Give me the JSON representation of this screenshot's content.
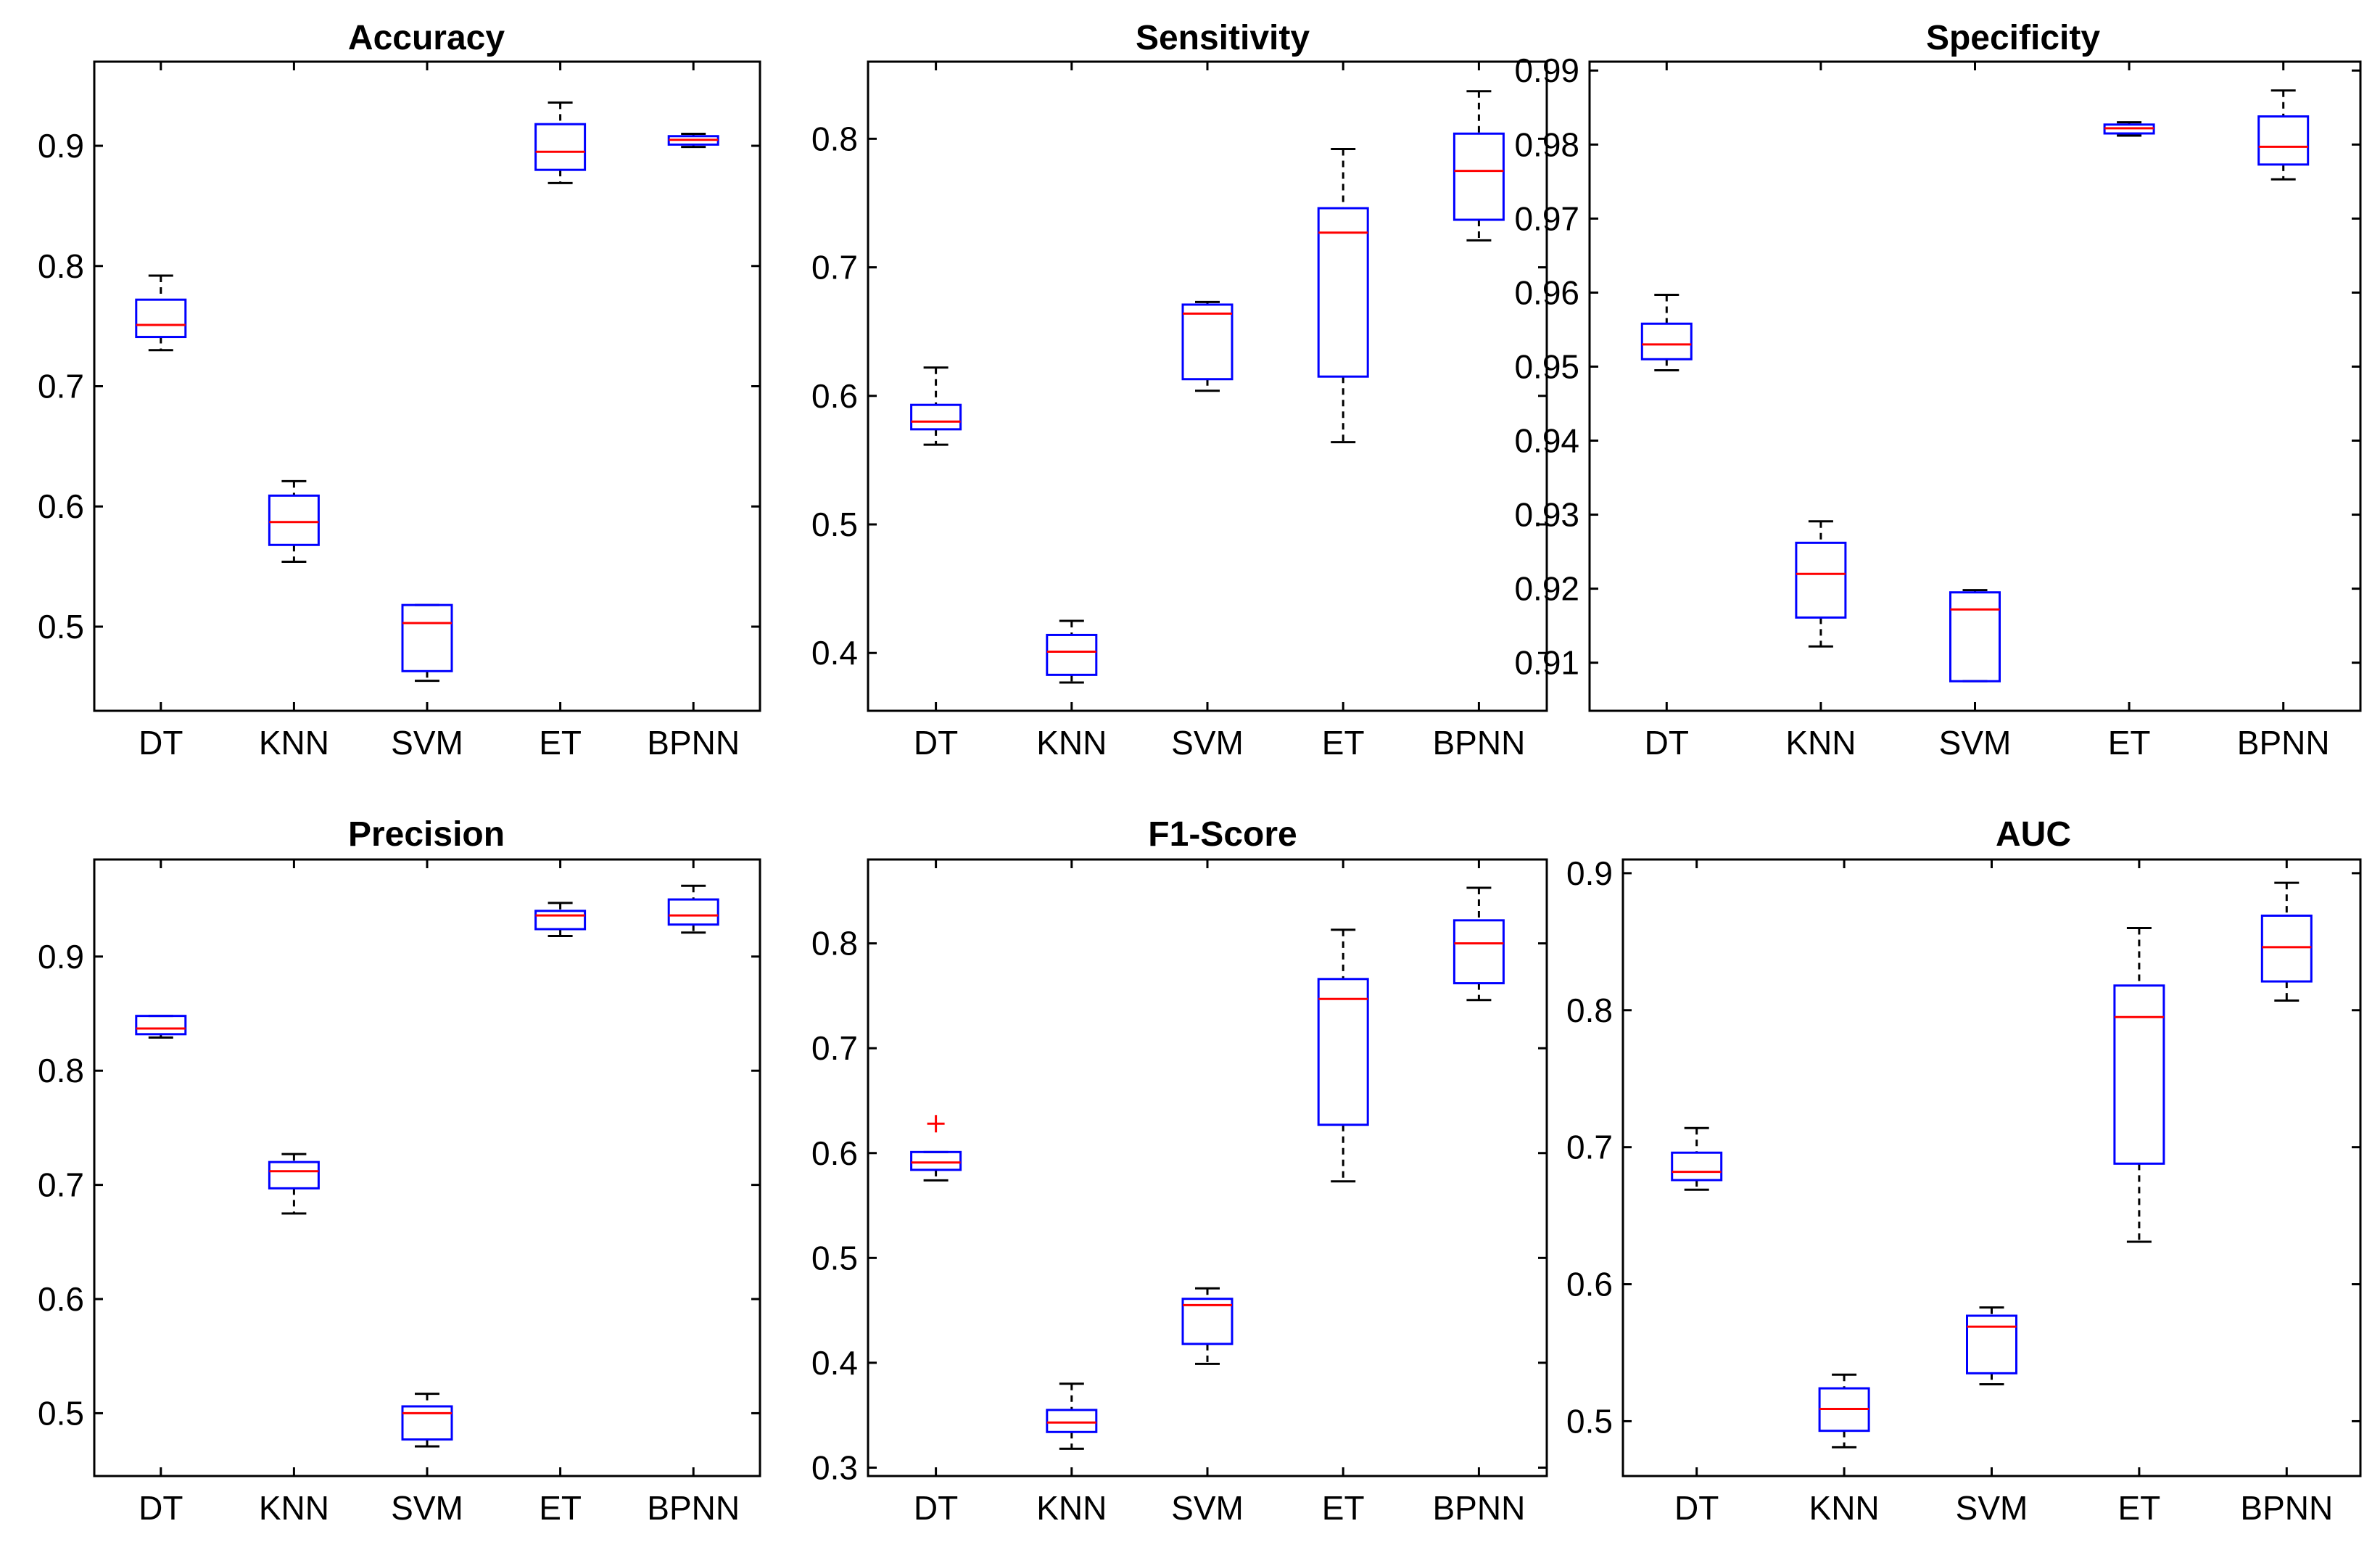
{
  "chart_data": [
    {
      "type": "box",
      "title": "Accuracy",
      "categories": [
        "DT",
        "KNN",
        "SVM",
        "ET",
        "BPNN"
      ],
      "yticks": [
        "0.5",
        "0.6",
        "0.7",
        "0.8",
        "0.9"
      ],
      "ylim": [
        0.43,
        0.97
      ],
      "boxes": [
        {
          "min": 0.73,
          "q1": 0.741,
          "median": 0.751,
          "q3": 0.772,
          "max": 0.792
        },
        {
          "min": 0.554,
          "q1": 0.568,
          "median": 0.587,
          "q3": 0.609,
          "max": 0.621
        },
        {
          "min": 0.455,
          "q1": 0.463,
          "median": 0.503,
          "q3": 0.518,
          "max": 0.518
        },
        {
          "min": 0.869,
          "q1": 0.88,
          "median": 0.895,
          "q3": 0.918,
          "max": 0.936
        },
        {
          "min": 0.899,
          "q1": 0.901,
          "median": 0.905,
          "q3": 0.908,
          "max": 0.91
        }
      ]
    },
    {
      "type": "box",
      "title": "Sensitivity",
      "categories": [
        "DT",
        "KNN",
        "SVM",
        "ET",
        "BPNN"
      ],
      "yticks": [
        "0.4",
        "0.5",
        "0.6",
        "0.7",
        "0.8"
      ],
      "ylim": [
        0.355,
        0.86
      ],
      "boxes": [
        {
          "min": 0.562,
          "q1": 0.574,
          "median": 0.58,
          "q3": 0.593,
          "max": 0.622
        },
        {
          "min": 0.377,
          "q1": 0.383,
          "median": 0.401,
          "q3": 0.414,
          "max": 0.425
        },
        {
          "min": 0.604,
          "q1": 0.613,
          "median": 0.664,
          "q3": 0.671,
          "max": 0.673
        },
        {
          "min": 0.564,
          "q1": 0.615,
          "median": 0.727,
          "q3": 0.746,
          "max": 0.792
        },
        {
          "min": 0.721,
          "q1": 0.737,
          "median": 0.775,
          "q3": 0.804,
          "max": 0.837
        }
      ]
    },
    {
      "type": "box",
      "title": "Specificity",
      "categories": [
        "DT",
        "KNN",
        "SVM",
        "ET",
        "BPNN"
      ],
      "yticks": [
        "0.91",
        "0.92",
        "0.93",
        "0.94",
        "0.95",
        "0.96",
        "0.97",
        "0.98",
        "0.99"
      ],
      "ylim": [
        0.9035,
        0.9912
      ],
      "boxes": [
        {
          "min": 0.9495,
          "q1": 0.951,
          "median": 0.953,
          "q3": 0.9558,
          "max": 0.9597
        },
        {
          "min": 0.9122,
          "q1": 0.9161,
          "median": 0.922,
          "q3": 0.9262,
          "max": 0.9291
        },
        {
          "min": 0.9075,
          "q1": 0.9075,
          "median": 0.9172,
          "q3": 0.9195,
          "max": 0.9198
        },
        {
          "min": 0.9812,
          "q1": 0.9815,
          "median": 0.9822,
          "q3": 0.9827,
          "max": 0.983
        },
        {
          "min": 0.9753,
          "q1": 0.9773,
          "median": 0.9797,
          "q3": 0.9838,
          "max": 0.9873
        }
      ]
    },
    {
      "type": "box",
      "title": "Precision",
      "categories": [
        "DT",
        "KNN",
        "SVM",
        "ET",
        "BPNN"
      ],
      "yticks": [
        "0.5",
        "0.6",
        "0.7",
        "0.8",
        "0.9"
      ],
      "ylim": [
        0.445,
        0.985
      ],
      "boxes": [
        {
          "min": 0.829,
          "q1": 0.832,
          "median": 0.837,
          "q3": 0.848,
          "max": 0.848
        },
        {
          "min": 0.675,
          "q1": 0.697,
          "median": 0.712,
          "q3": 0.72,
          "max": 0.727
        },
        {
          "min": 0.471,
          "q1": 0.477,
          "median": 0.5,
          "q3": 0.506,
          "max": 0.517
        },
        {
          "min": 0.918,
          "q1": 0.924,
          "median": 0.936,
          "q3": 0.94,
          "max": 0.947
        },
        {
          "min": 0.921,
          "q1": 0.928,
          "median": 0.936,
          "q3": 0.95,
          "max": 0.962
        }
      ]
    },
    {
      "type": "box",
      "title": "F1-Score",
      "categories": [
        "DT",
        "KNN",
        "SVM",
        "ET",
        "BPNN"
      ],
      "yticks": [
        "0.3",
        "0.4",
        "0.5",
        "0.6",
        "0.7",
        "0.8"
      ],
      "ylim": [
        0.292,
        0.88
      ],
      "boxes": [
        {
          "min": 0.574,
          "q1": 0.584,
          "median": 0.591,
          "q3": 0.601,
          "max": 0.601,
          "outliers": [
            0.628
          ]
        },
        {
          "min": 0.318,
          "q1": 0.334,
          "median": 0.343,
          "q3": 0.355,
          "max": 0.38
        },
        {
          "min": 0.399,
          "q1": 0.418,
          "median": 0.455,
          "q3": 0.461,
          "max": 0.471
        },
        {
          "min": 0.573,
          "q1": 0.627,
          "median": 0.747,
          "q3": 0.766,
          "max": 0.813
        },
        {
          "min": 0.746,
          "q1": 0.762,
          "median": 0.8,
          "q3": 0.822,
          "max": 0.853
        }
      ]
    },
    {
      "type": "box",
      "title": "AUC",
      "categories": [
        "DT",
        "KNN",
        "SVM",
        "ET",
        "BPNN"
      ],
      "yticks": [
        "0.5",
        "0.6",
        "0.7",
        "0.8",
        "0.9"
      ],
      "ylim": [
        0.46,
        0.91
      ],
      "boxes": [
        {
          "min": 0.669,
          "q1": 0.676,
          "median": 0.682,
          "q3": 0.696,
          "max": 0.714
        },
        {
          "min": 0.481,
          "q1": 0.493,
          "median": 0.509,
          "q3": 0.524,
          "max": 0.534
        },
        {
          "min": 0.527,
          "q1": 0.535,
          "median": 0.569,
          "q3": 0.577,
          "max": 0.583
        },
        {
          "min": 0.631,
          "q1": 0.688,
          "median": 0.795,
          "q3": 0.818,
          "max": 0.86
        },
        {
          "min": 0.807,
          "q1": 0.821,
          "median": 0.846,
          "q3": 0.869,
          "max": 0.893
        }
      ]
    }
  ]
}
